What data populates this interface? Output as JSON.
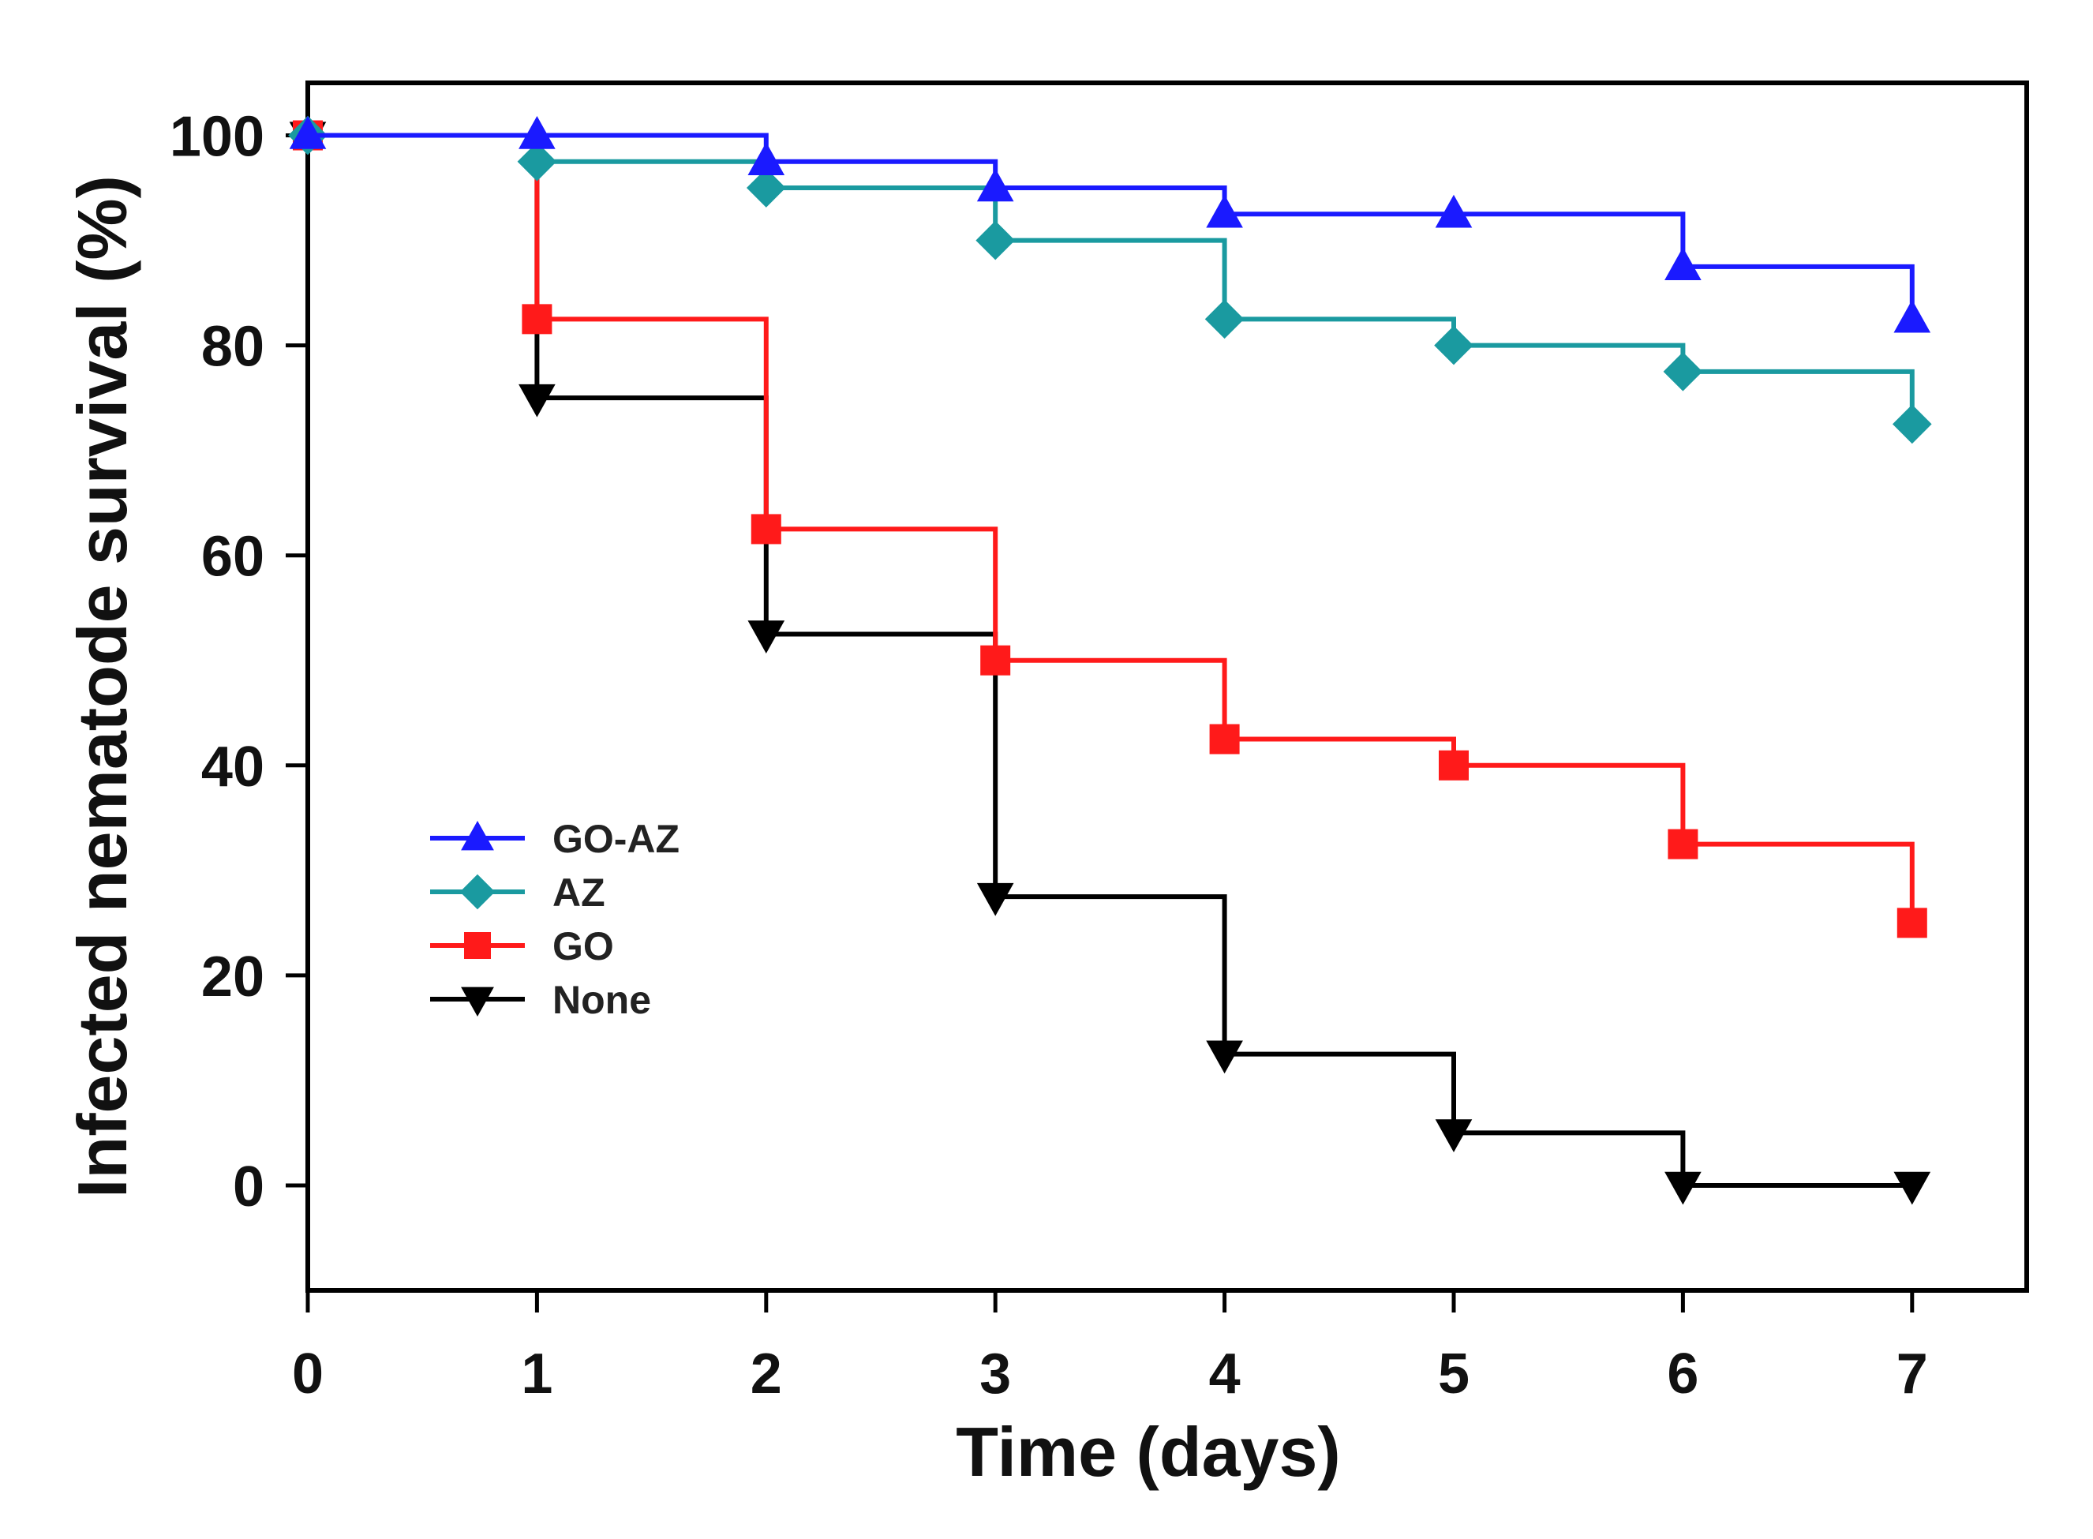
{
  "chart_data": {
    "type": "line",
    "subtype": "step",
    "title": "",
    "xlabel": "Time (days)",
    "ylabel": "Infected nematode survival (%)",
    "xlim": [
      0,
      7.5
    ],
    "ylim": [
      -10,
      105
    ],
    "xticks": [
      0,
      1,
      2,
      3,
      4,
      5,
      6,
      7
    ],
    "yticks": [
      0,
      20,
      40,
      60,
      80,
      100
    ],
    "grid": false,
    "legend_position": "left-middle",
    "x": [
      0,
      1,
      2,
      3,
      4,
      5,
      6,
      7
    ],
    "series": [
      {
        "name": "GO-AZ",
        "color": "#1a1aff",
        "marker": "triangle-up",
        "values": [
          100,
          100,
          97.5,
          95,
          92.5,
          92.5,
          87.5,
          82.5
        ]
      },
      {
        "name": "AZ",
        "color": "#1a9aa0",
        "marker": "diamond",
        "values": [
          100,
          97.5,
          95,
          90,
          82.5,
          80,
          77.5,
          72.5
        ]
      },
      {
        "name": "GO",
        "color": "#ff1a1a",
        "marker": "square",
        "values": [
          100,
          82.5,
          62.5,
          50,
          42.5,
          40,
          32.5,
          25
        ]
      },
      {
        "name": "None",
        "color": "#000000",
        "marker": "triangle-down",
        "values": [
          100,
          75,
          52.5,
          27.5,
          12.5,
          5,
          0,
          0
        ]
      }
    ]
  }
}
